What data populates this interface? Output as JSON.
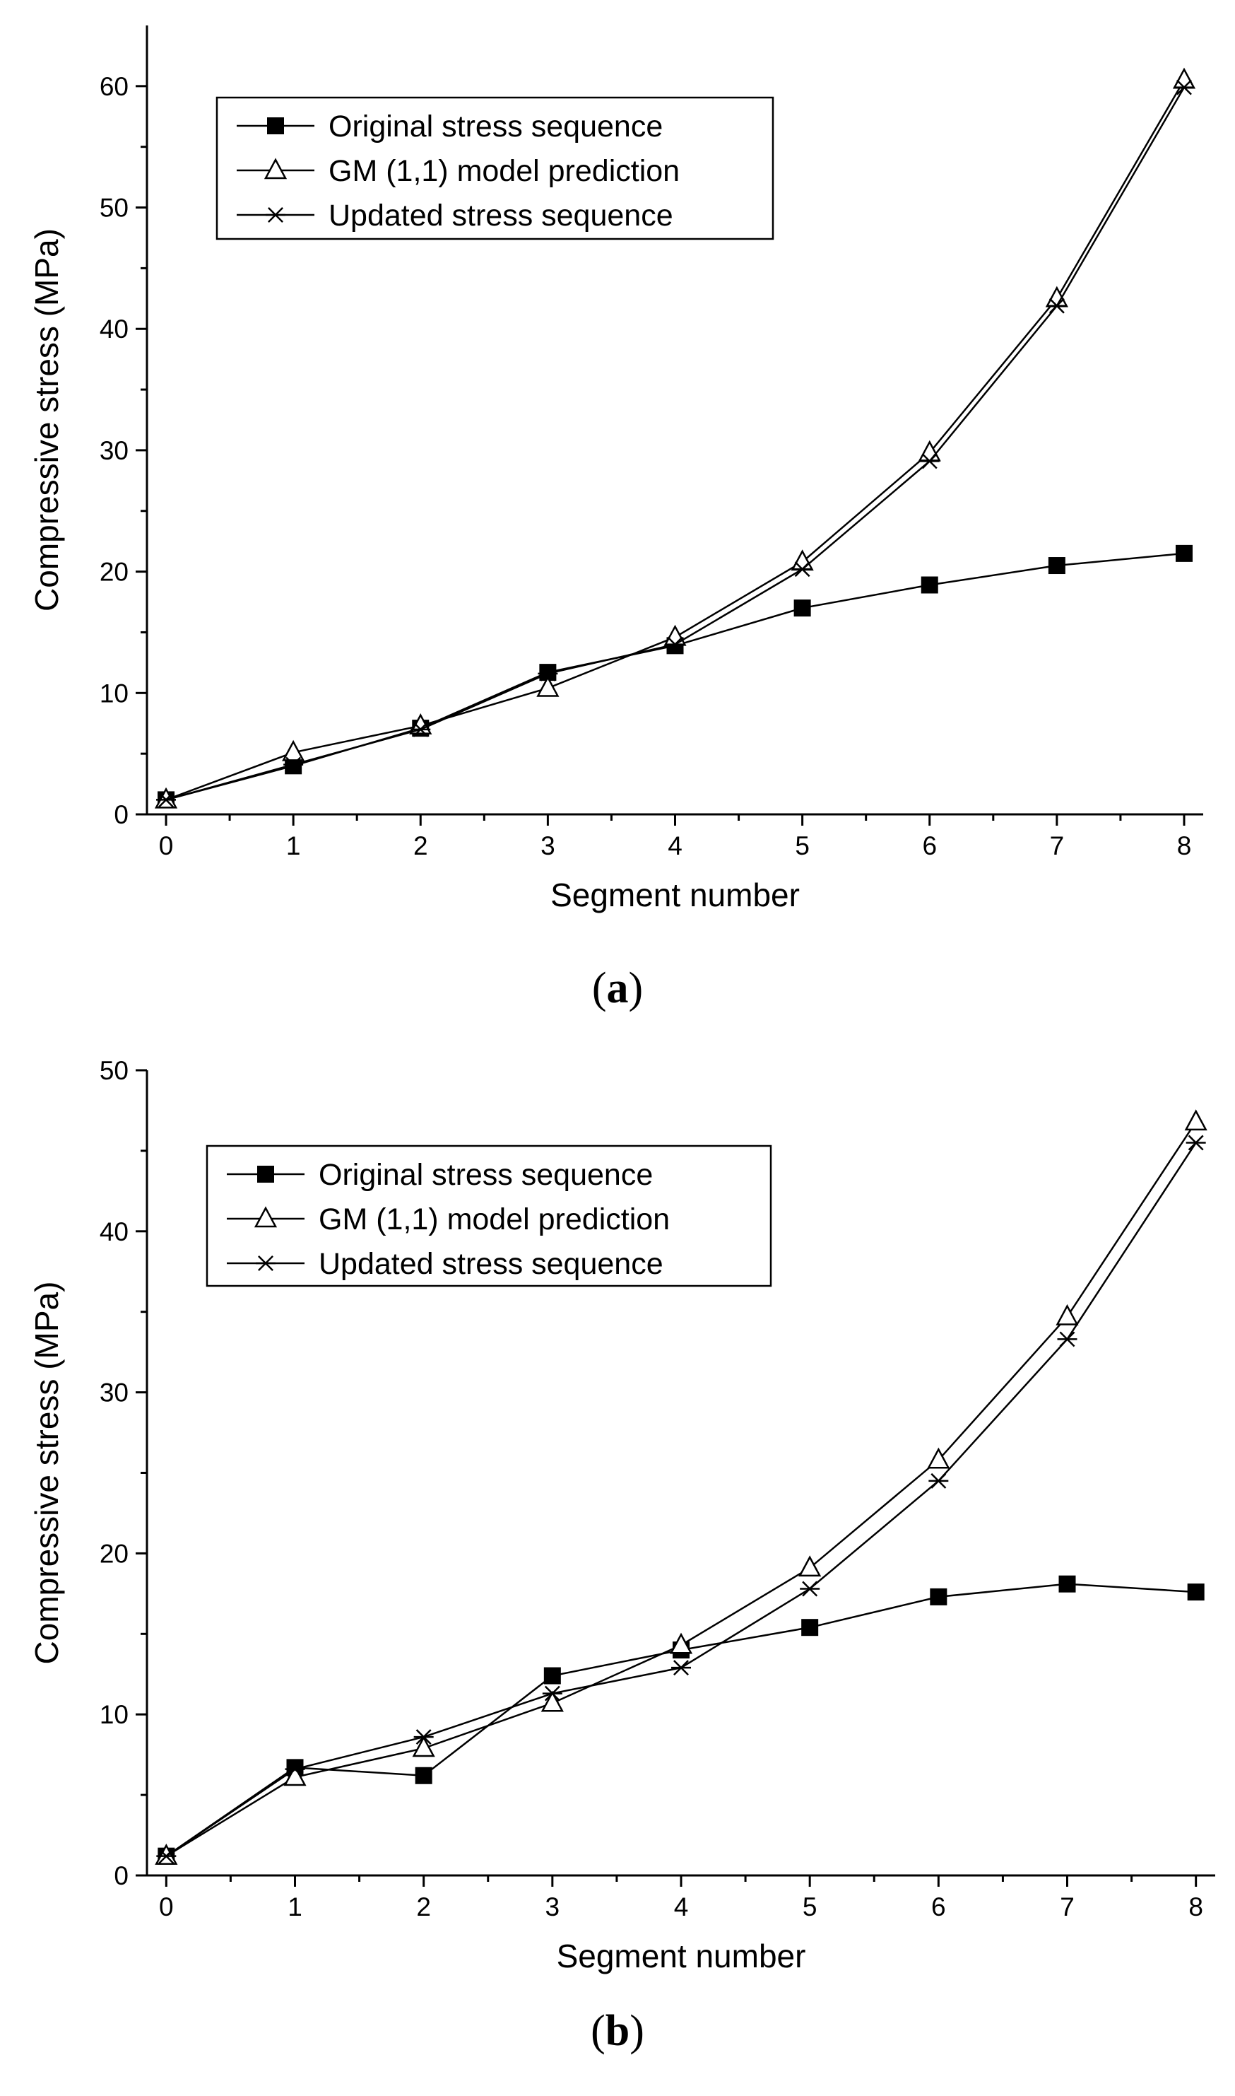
{
  "colors": {
    "line": "#000000",
    "background": "#ffffff"
  },
  "chart_data": [
    {
      "type": "line",
      "panel_label": "a",
      "xlabel": "Segment number",
      "ylabel": "Compressive stress (MPa)",
      "xlim": [
        -0.15,
        8.15
      ],
      "ylim": [
        0,
        65
      ],
      "xticks": [
        0,
        1,
        2,
        3,
        4,
        5,
        6,
        7,
        8
      ],
      "yticks": [
        0,
        10,
        20,
        30,
        40,
        50,
        60
      ],
      "grid": false,
      "legend_position": "top-left",
      "x": [
        0,
        1,
        2,
        3,
        4,
        5,
        6,
        7,
        8
      ],
      "series": [
        {
          "name": "Original stress sequence",
          "marker": "filled-square",
          "values": [
            1.2,
            4.0,
            7.1,
            11.7,
            13.9,
            17.0,
            18.9,
            20.5,
            21.5
          ]
        },
        {
          "name": "GM (1,1) model prediction",
          "marker": "open-triangle",
          "values": [
            1.2,
            5.1,
            7.3,
            10.4,
            14.6,
            20.8,
            29.8,
            42.5,
            60.5
          ]
        },
        {
          "name": "Updated stress sequence",
          "marker": "asterisk",
          "values": [
            1.2,
            4.1,
            7.0,
            11.6,
            14.0,
            20.2,
            29.1,
            41.9,
            59.9
          ]
        }
      ]
    },
    {
      "type": "line",
      "panel_label": "b",
      "xlabel": "Segment number",
      "ylabel": "Compressive stress (MPa)",
      "xlim": [
        -0.15,
        8.15
      ],
      "ylim": [
        0,
        50
      ],
      "xticks": [
        0,
        1,
        2,
        3,
        4,
        5,
        6,
        7,
        8
      ],
      "yticks": [
        0,
        10,
        20,
        30,
        40,
        50
      ],
      "grid": false,
      "legend_position": "top-left",
      "x": [
        0,
        1,
        2,
        3,
        4,
        5,
        6,
        7,
        8
      ],
      "series": [
        {
          "name": "Original stress sequence",
          "marker": "filled-square",
          "values": [
            1.2,
            6.7,
            6.2,
            12.4,
            14.0,
            15.4,
            17.3,
            18.1,
            17.6
          ]
        },
        {
          "name": "GM (1,1) model prediction",
          "marker": "open-triangle",
          "values": [
            1.2,
            6.1,
            7.9,
            10.7,
            14.3,
            19.1,
            25.8,
            34.7,
            46.8
          ]
        },
        {
          "name": "Updated stress sequence",
          "marker": "asterisk",
          "values": [
            1.2,
            6.6,
            8.6,
            11.3,
            12.9,
            17.8,
            24.5,
            33.3,
            45.5
          ]
        }
      ]
    }
  ]
}
